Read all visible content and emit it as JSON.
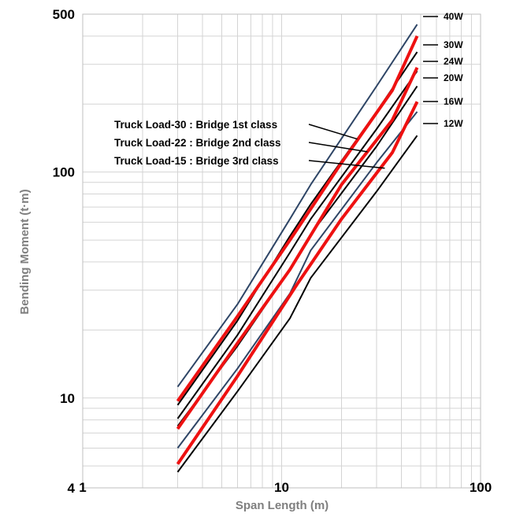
{
  "chart_data": {
    "type": "line",
    "xscale": "log",
    "yscale": "log",
    "xlim": [
      1,
      100
    ],
    "ylim": [
      4,
      500
    ],
    "grid": true,
    "xlabel": "Span Length (m)",
    "ylabel": "Bending Moment (t·m)",
    "x_ticks": [
      "1",
      "10",
      "100"
    ],
    "y_ticks": [
      "4",
      "10",
      "100",
      "500"
    ],
    "colors": {
      "navy": "#2e4566",
      "black": "#000000",
      "red": "#ee1111",
      "grid": "#d4d4d4"
    },
    "series": [
      {
        "name": "40W",
        "color": "navy",
        "width": 2,
        "x": [
          3,
          6,
          11,
          14,
          30,
          48
        ],
        "y": [
          11.2,
          26,
          62,
          88,
          240,
          450
        ]
      },
      {
        "name": "30W",
        "color": "black",
        "width": 2,
        "x": [
          3,
          6,
          11,
          14,
          30,
          48
        ],
        "y": [
          9.3,
          22,
          52,
          72,
          185,
          340
        ]
      },
      {
        "name": "24W",
        "color": "black",
        "width": 2,
        "x": [
          3,
          6,
          11,
          14,
          30,
          48
        ],
        "y": [
          8.1,
          19,
          44,
          62,
          155,
          280
        ]
      },
      {
        "name": "20W",
        "color": "black",
        "width": 2,
        "x": [
          3,
          6,
          11,
          14,
          30,
          48
        ],
        "y": [
          7.5,
          17,
          37,
          53,
          130,
          240
        ]
      },
      {
        "name": "16W",
        "color": "navy",
        "width": 2,
        "x": [
          3,
          6,
          11,
          14,
          30,
          48
        ],
        "y": [
          6,
          13.5,
          29,
          45,
          110,
          185
        ]
      },
      {
        "name": "12W",
        "color": "black",
        "width": 2,
        "x": [
          3,
          6,
          11,
          14,
          30,
          48
        ],
        "y": [
          4.7,
          10.7,
          22.5,
          34,
          82,
          145
        ]
      },
      {
        "name": "Truck Load-30 : Bridge 1st class",
        "color": "red",
        "width": 4,
        "x": [
          3,
          6,
          11,
          20,
          36,
          48
        ],
        "y": [
          9.7,
          23,
          50,
          110,
          230,
          400
        ]
      },
      {
        "name": "Truck Load-22 : Bridge 2nd class",
        "color": "red",
        "width": 4,
        "x": [
          3,
          6,
          11,
          20,
          36,
          48
        ],
        "y": [
          7.3,
          17.5,
          37,
          88,
          170,
          290
        ]
      },
      {
        "name": "Truck Load-15 : Bridge 3rd class",
        "color": "red",
        "width": 4,
        "x": [
          3,
          6,
          12,
          20,
          36,
          48
        ],
        "y": [
          5.1,
          12.5,
          32,
          62,
          122,
          205
        ]
      }
    ],
    "line_labels": [
      "40W",
      "30W",
      "24W",
      "20W",
      "16W",
      "12W"
    ],
    "annotations": [
      {
        "text": "Truck Load-30 : Bridge 1st class",
        "points_to": {
          "x": 24,
          "y": 140
        }
      },
      {
        "text": "Truck Load-22 : Bridge 2nd class",
        "points_to": {
          "x": 27,
          "y": 123
        }
      },
      {
        "text": "Truck Load-15 : Bridge 3rd class",
        "points_to": {
          "x": 33,
          "y": 104
        }
      }
    ]
  }
}
